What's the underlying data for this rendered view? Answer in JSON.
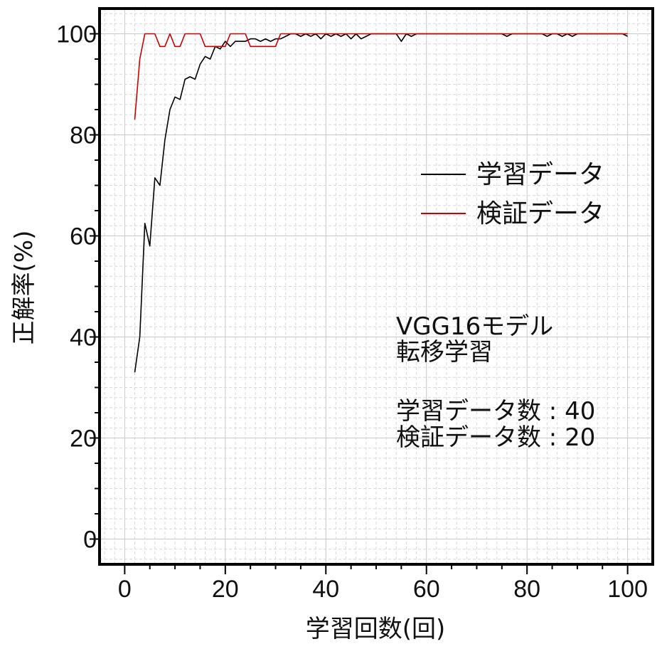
{
  "chart_data": {
    "type": "line",
    "title": "",
    "xlabel": "学習回数(回)",
    "ylabel": "正解率(%)",
    "xlim": [
      -5,
      105
    ],
    "ylim": [
      -5,
      105
    ],
    "xticks": [
      0,
      20,
      40,
      60,
      80,
      100
    ],
    "yticks": [
      0,
      20,
      40,
      60,
      80,
      100
    ],
    "grid": true,
    "legend_position": "right-upper",
    "series": [
      {
        "name": "学習データ",
        "color": "#000000",
        "x": [
          2,
          3,
          4,
          5,
          6,
          7,
          8,
          9,
          10,
          11,
          12,
          13,
          14,
          15,
          16,
          17,
          18,
          19,
          20,
          21,
          22,
          23,
          24,
          25,
          26,
          27,
          28,
          29,
          30,
          31,
          32,
          33,
          34,
          35,
          36,
          37,
          38,
          39,
          40,
          41,
          42,
          43,
          44,
          45,
          46,
          47,
          48,
          49,
          50,
          51,
          52,
          53,
          54,
          55,
          56,
          57,
          58,
          59,
          60,
          61,
          62,
          63,
          64,
          65,
          66,
          67,
          68,
          69,
          70,
          71,
          72,
          73,
          74,
          75,
          76,
          77,
          78,
          79,
          80,
          81,
          82,
          83,
          84,
          85,
          86,
          87,
          88,
          89,
          90,
          91,
          92,
          93,
          94,
          95,
          96,
          97,
          98,
          99,
          100
        ],
        "values": [
          33,
          40,
          62.5,
          58,
          71.5,
          70,
          79,
          85,
          87.5,
          87,
          91,
          91.5,
          91,
          94,
          95.5,
          95,
          97.5,
          97,
          98.5,
          97.5,
          98.5,
          98.5,
          98.5,
          99,
          99,
          98.5,
          99,
          98.5,
          99,
          99,
          99.5,
          100,
          100,
          99.5,
          100,
          99.5,
          100,
          99,
          100,
          99.5,
          100,
          99.5,
          100,
          99,
          100,
          99,
          99.5,
          100,
          100,
          100,
          100,
          100,
          100,
          98.5,
          100,
          99.5,
          100,
          100,
          100,
          100,
          100,
          100,
          100,
          100,
          100,
          100,
          100,
          100,
          100,
          100,
          100,
          100,
          100,
          100,
          99.5,
          100,
          100,
          100,
          100,
          100,
          100,
          100,
          99.5,
          100,
          100,
          99.5,
          100,
          99.5,
          100,
          100,
          100,
          100,
          100,
          100,
          100,
          100,
          100,
          100,
          99.5
        ]
      },
      {
        "name": "検証データ",
        "color": "#cc0000",
        "x": [
          2,
          3,
          4,
          5,
          6,
          7,
          8,
          9,
          10,
          11,
          12,
          13,
          14,
          15,
          16,
          17,
          18,
          19,
          20,
          21,
          22,
          23,
          24,
          25,
          26,
          27,
          28,
          29,
          30,
          31,
          32,
          33,
          34,
          35,
          36,
          37,
          38,
          39,
          40,
          41,
          42,
          43,
          44,
          45,
          46,
          47,
          48,
          49,
          50,
          51,
          52,
          53,
          54,
          55,
          56,
          57,
          58,
          59,
          60,
          61,
          62,
          63,
          64,
          65,
          66,
          67,
          68,
          69,
          70,
          71,
          72,
          73,
          74,
          75,
          76,
          77,
          78,
          79,
          80,
          81,
          82,
          83,
          84,
          85,
          86,
          87,
          88,
          89,
          90,
          91,
          92,
          93,
          94,
          95,
          96,
          97,
          98,
          99,
          100
        ],
        "values": [
          83,
          95,
          100,
          100,
          100,
          97.5,
          97.5,
          100,
          97.5,
          97.5,
          100,
          100,
          100,
          100,
          97.5,
          97.5,
          97.5,
          97.5,
          97.5,
          100,
          100,
          100,
          100,
          97.5,
          97.5,
          97.5,
          97.5,
          97.5,
          97.5,
          100,
          100,
          100,
          100,
          100,
          100,
          100,
          100,
          100,
          100,
          100,
          100,
          100,
          100,
          100,
          100,
          100,
          100,
          100,
          100,
          100,
          100,
          100,
          100,
          100,
          100,
          100,
          100,
          100,
          100,
          100,
          100,
          100,
          100,
          100,
          100,
          100,
          100,
          100,
          100,
          100,
          100,
          100,
          100,
          100,
          100,
          100,
          100,
          100,
          100,
          100,
          100,
          100,
          100,
          100,
          100,
          100,
          100,
          100,
          100,
          100,
          100,
          100,
          100,
          100,
          100,
          100,
          100,
          100,
          100
        ]
      }
    ],
    "annotations": [
      "VGG16モデル",
      "転移学習",
      "学習データ数 : 40",
      "検証データ数 : 20"
    ]
  }
}
